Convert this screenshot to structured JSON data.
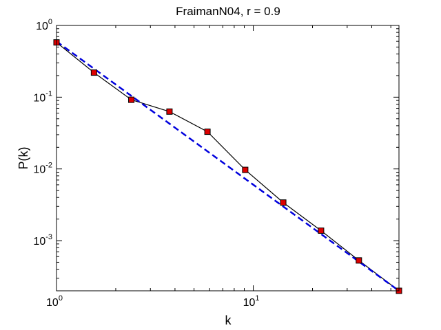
{
  "chart_data": {
    "type": "line",
    "title": "FraimanN04, r = 0.9",
    "xlabel": "k",
    "ylabel": "P(k)",
    "xscale": "log",
    "yscale": "log",
    "xlim": [
      1,
      55
    ],
    "ylim": [
      0.0002,
      1
    ],
    "grid": false,
    "legend": "none",
    "x_ticks": [
      {
        "value": 1,
        "base": "10",
        "exp": "0"
      },
      {
        "value": 10,
        "base": "10",
        "exp": "1"
      }
    ],
    "y_ticks": [
      {
        "value": 1,
        "base": "10",
        "exp": "0"
      },
      {
        "value": 0.1,
        "base": "10",
        "exp": "-1"
      },
      {
        "value": 0.01,
        "base": "10",
        "exp": "-2"
      },
      {
        "value": 0.001,
        "base": "10",
        "exp": "-3"
      }
    ],
    "series": [
      {
        "style": "solid-markers",
        "color": "#000000",
        "marker_color": "#dd0000",
        "x": [
          1,
          1.55,
          2.4,
          3.75,
          5.85,
          9.1,
          14.2,
          22.1,
          34.4,
          55
        ],
        "y": [
          0.58,
          0.22,
          0.092,
          0.063,
          0.033,
          0.0097,
          0.0034,
          0.00138,
          0.00053,
          0.0002
        ]
      },
      {
        "style": "dashed",
        "color": "#0000dd",
        "x": [
          1,
          55
        ],
        "y": [
          0.6,
          0.0002
        ]
      }
    ]
  }
}
